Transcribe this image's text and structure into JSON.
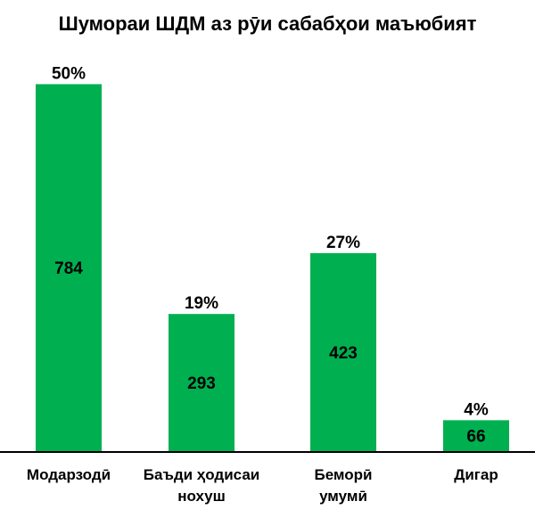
{
  "chart_data": {
    "type": "bar",
    "title": "Шумораи ШДМ аз рӯи сабабҳои маъюбият",
    "xlabel": "",
    "ylabel": "",
    "categories": [
      [
        "Модарзодӣ"
      ],
      [
        "Баъди ҳодисаи",
        "нохуш"
      ],
      [
        "Беморӣ",
        "умумӣ"
      ],
      [
        "Дигар"
      ]
    ],
    "values": [
      784,
      293,
      423,
      66
    ],
    "percent_labels": [
      "50%",
      "19%",
      "27%",
      "4%"
    ],
    "ylim": [
      0,
      800
    ],
    "grid": false,
    "legend": "none",
    "bar_color": "#00b050",
    "axis_color": "#000000"
  }
}
